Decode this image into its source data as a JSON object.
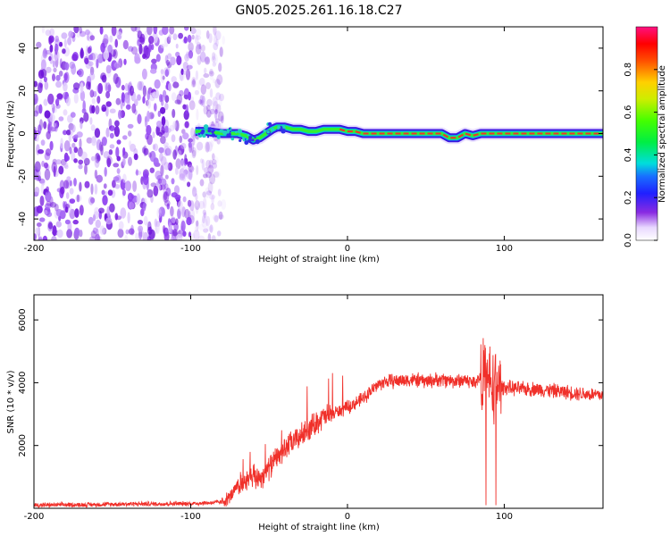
{
  "title": "GN05.2025.261.16.18.C27",
  "chart_data": [
    {
      "type": "heatmap",
      "title": "GN05.2025.261.16.18.C27",
      "xlabel": "Height of straight line (km)",
      "ylabel": "Frequency (Hz)",
      "xlim": [
        -200,
        163
      ],
      "ylim": [
        -50,
        50
      ],
      "xticks": [
        -200,
        -100,
        0,
        100
      ],
      "yticks": [
        -40,
        -20,
        0,
        20,
        40
      ],
      "noise_region_x": [
        -200,
        -85
      ],
      "signal_track": {
        "x": [
          -97,
          -90,
          -80,
          -70,
          -65,
          -60,
          -56,
          -52,
          -48,
          -45,
          -40,
          -35,
          -30,
          -25,
          -20,
          -15,
          -10,
          -5,
          0,
          5,
          10,
          20,
          40,
          60,
          65,
          70,
          75,
          80,
          85,
          90,
          100,
          120,
          140,
          163
        ],
        "frequency": [
          1,
          1,
          0,
          0,
          -1,
          -3,
          -2,
          0,
          2,
          3,
          3,
          2,
          2,
          1,
          1,
          2,
          2,
          2,
          1,
          1,
          0,
          0,
          0,
          0,
          -2,
          -2,
          0,
          -1,
          0,
          0,
          0,
          0,
          0,
          0
        ]
      },
      "colorbar": {
        "label": "Normalized spectral amplitude",
        "ticks": [
          0.0,
          0.2,
          0.4,
          0.6,
          0.8
        ],
        "tick_labels": [
          "0.0",
          "0.2",
          "0.4",
          "0.6",
          "0.8"
        ],
        "range": [
          0,
          1
        ]
      }
    },
    {
      "type": "line",
      "xlabel": "Height of straight line (km)",
      "ylabel": "SNR (10 * v/v)",
      "xlim": [
        -200,
        163
      ],
      "ylim": [
        0,
        6800
      ],
      "xticks": [
        -200,
        -100,
        0,
        100
      ],
      "yticks": [
        2000,
        4000,
        6000
      ],
      "color": "#f0302a",
      "series": [
        {
          "name": "SNR",
          "x": [
            -200,
            -180,
            -160,
            -140,
            -120,
            -100,
            -90,
            -80,
            -75,
            -70,
            -65,
            -60,
            -55,
            -50,
            -45,
            -40,
            -35,
            -30,
            -25,
            -20,
            -15,
            -10,
            -5,
            0,
            5,
            10,
            15,
            20,
            25,
            30,
            40,
            50,
            60,
            70,
            75,
            80,
            85,
            88,
            90,
            92,
            95,
            100,
            110,
            120,
            130,
            140,
            150,
            163
          ],
          "values": [
            100,
            110,
            120,
            140,
            140,
            150,
            170,
            200,
            350,
            700,
            850,
            950,
            1000,
            1300,
            1600,
            1900,
            2100,
            2300,
            2500,
            2750,
            2900,
            3000,
            3100,
            3200,
            3350,
            3500,
            3750,
            3950,
            4050,
            4050,
            4100,
            4050,
            4100,
            4050,
            4100,
            4000,
            4150,
            4200,
            4100,
            4000,
            3900,
            3850,
            3800,
            3800,
            3750,
            3700,
            3650,
            3600
          ]
        }
      ]
    }
  ]
}
